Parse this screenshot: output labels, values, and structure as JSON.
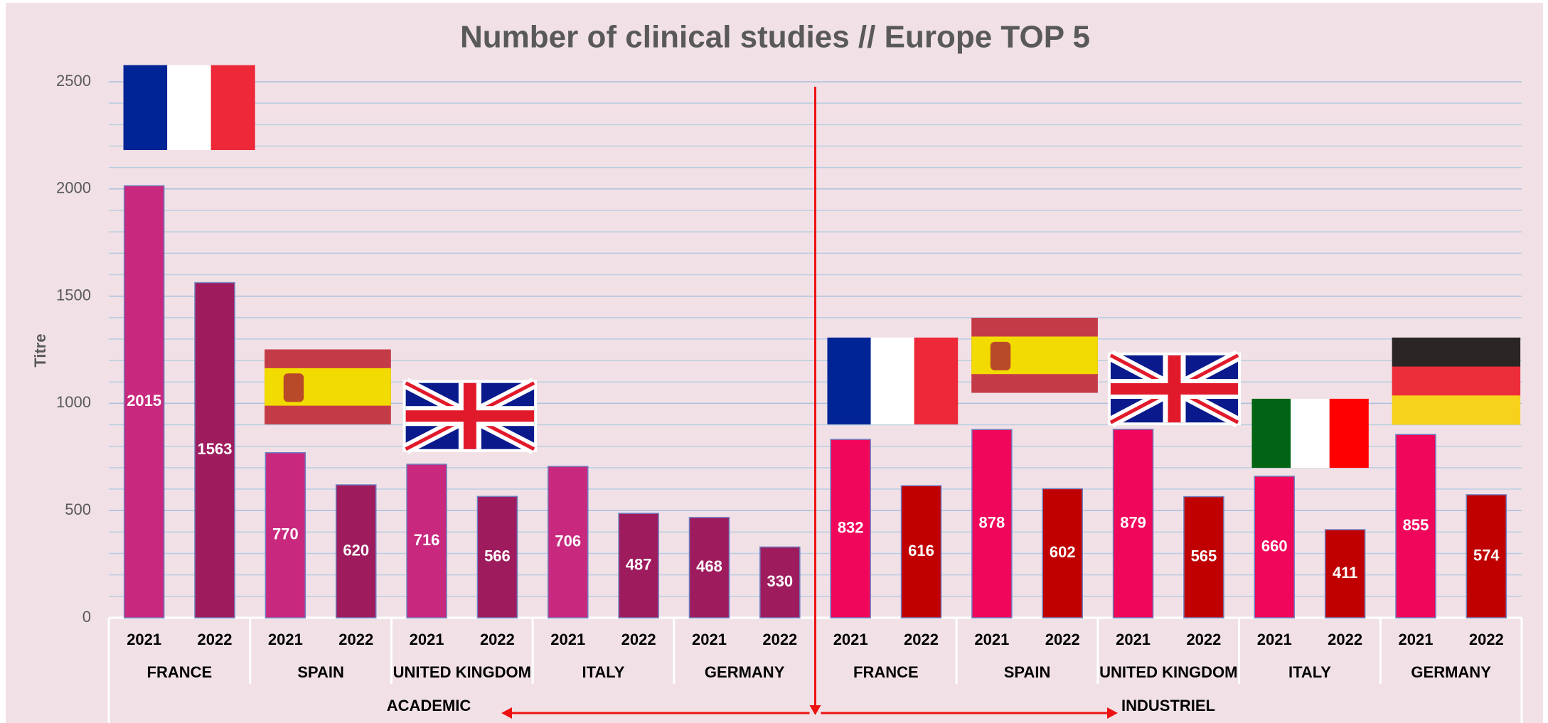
{
  "chart_data": {
    "type": "bar",
    "title": "Number of clinical studies // Europe TOP 5",
    "y_label": "Titre",
    "categories": [
      "2021",
      "2022",
      "2021",
      "2022",
      "2021",
      "2022",
      "2021",
      "2022",
      "2021",
      "2022",
      "2021",
      "2022",
      "2021",
      "2022",
      "2021",
      "2022",
      "2021",
      "2022",
      "2021",
      "2022"
    ],
    "countries": [
      "FRANCE",
      "SPAIN",
      "UNITED KINGDOM",
      "ITALY",
      "GERMANY",
      "FRANCE",
      "SPAIN",
      "UNITED KINGDOM",
      "ITALY",
      "GERMANY"
    ],
    "groups": [
      "ACADEMIC",
      "INDUSTRIEL"
    ],
    "values": [
      2015,
      1563,
      770,
      620,
      716,
      566,
      706,
      487,
      468,
      330,
      832,
      616,
      878,
      602,
      879,
      565,
      660,
      411,
      855,
      574
    ],
    "colors": [
      "#c8287e",
      "#9e1c5e",
      "#c8287e",
      "#9e1c5e",
      "#c8287e",
      "#9e1c5e",
      "#c8287e",
      "#9e1c5e",
      "#9e1c5e",
      "#9e1c5e",
      "#f0065a",
      "#c00000",
      "#f0065a",
      "#c00000",
      "#f0065a",
      "#c00000",
      "#f0065a",
      "#c00000",
      "#f0065a",
      "#c00000"
    ],
    "ylim": [
      0,
      2500
    ],
    "yticks": [
      0,
      500,
      1000,
      1500,
      2000,
      2500
    ],
    "grid": true
  }
}
